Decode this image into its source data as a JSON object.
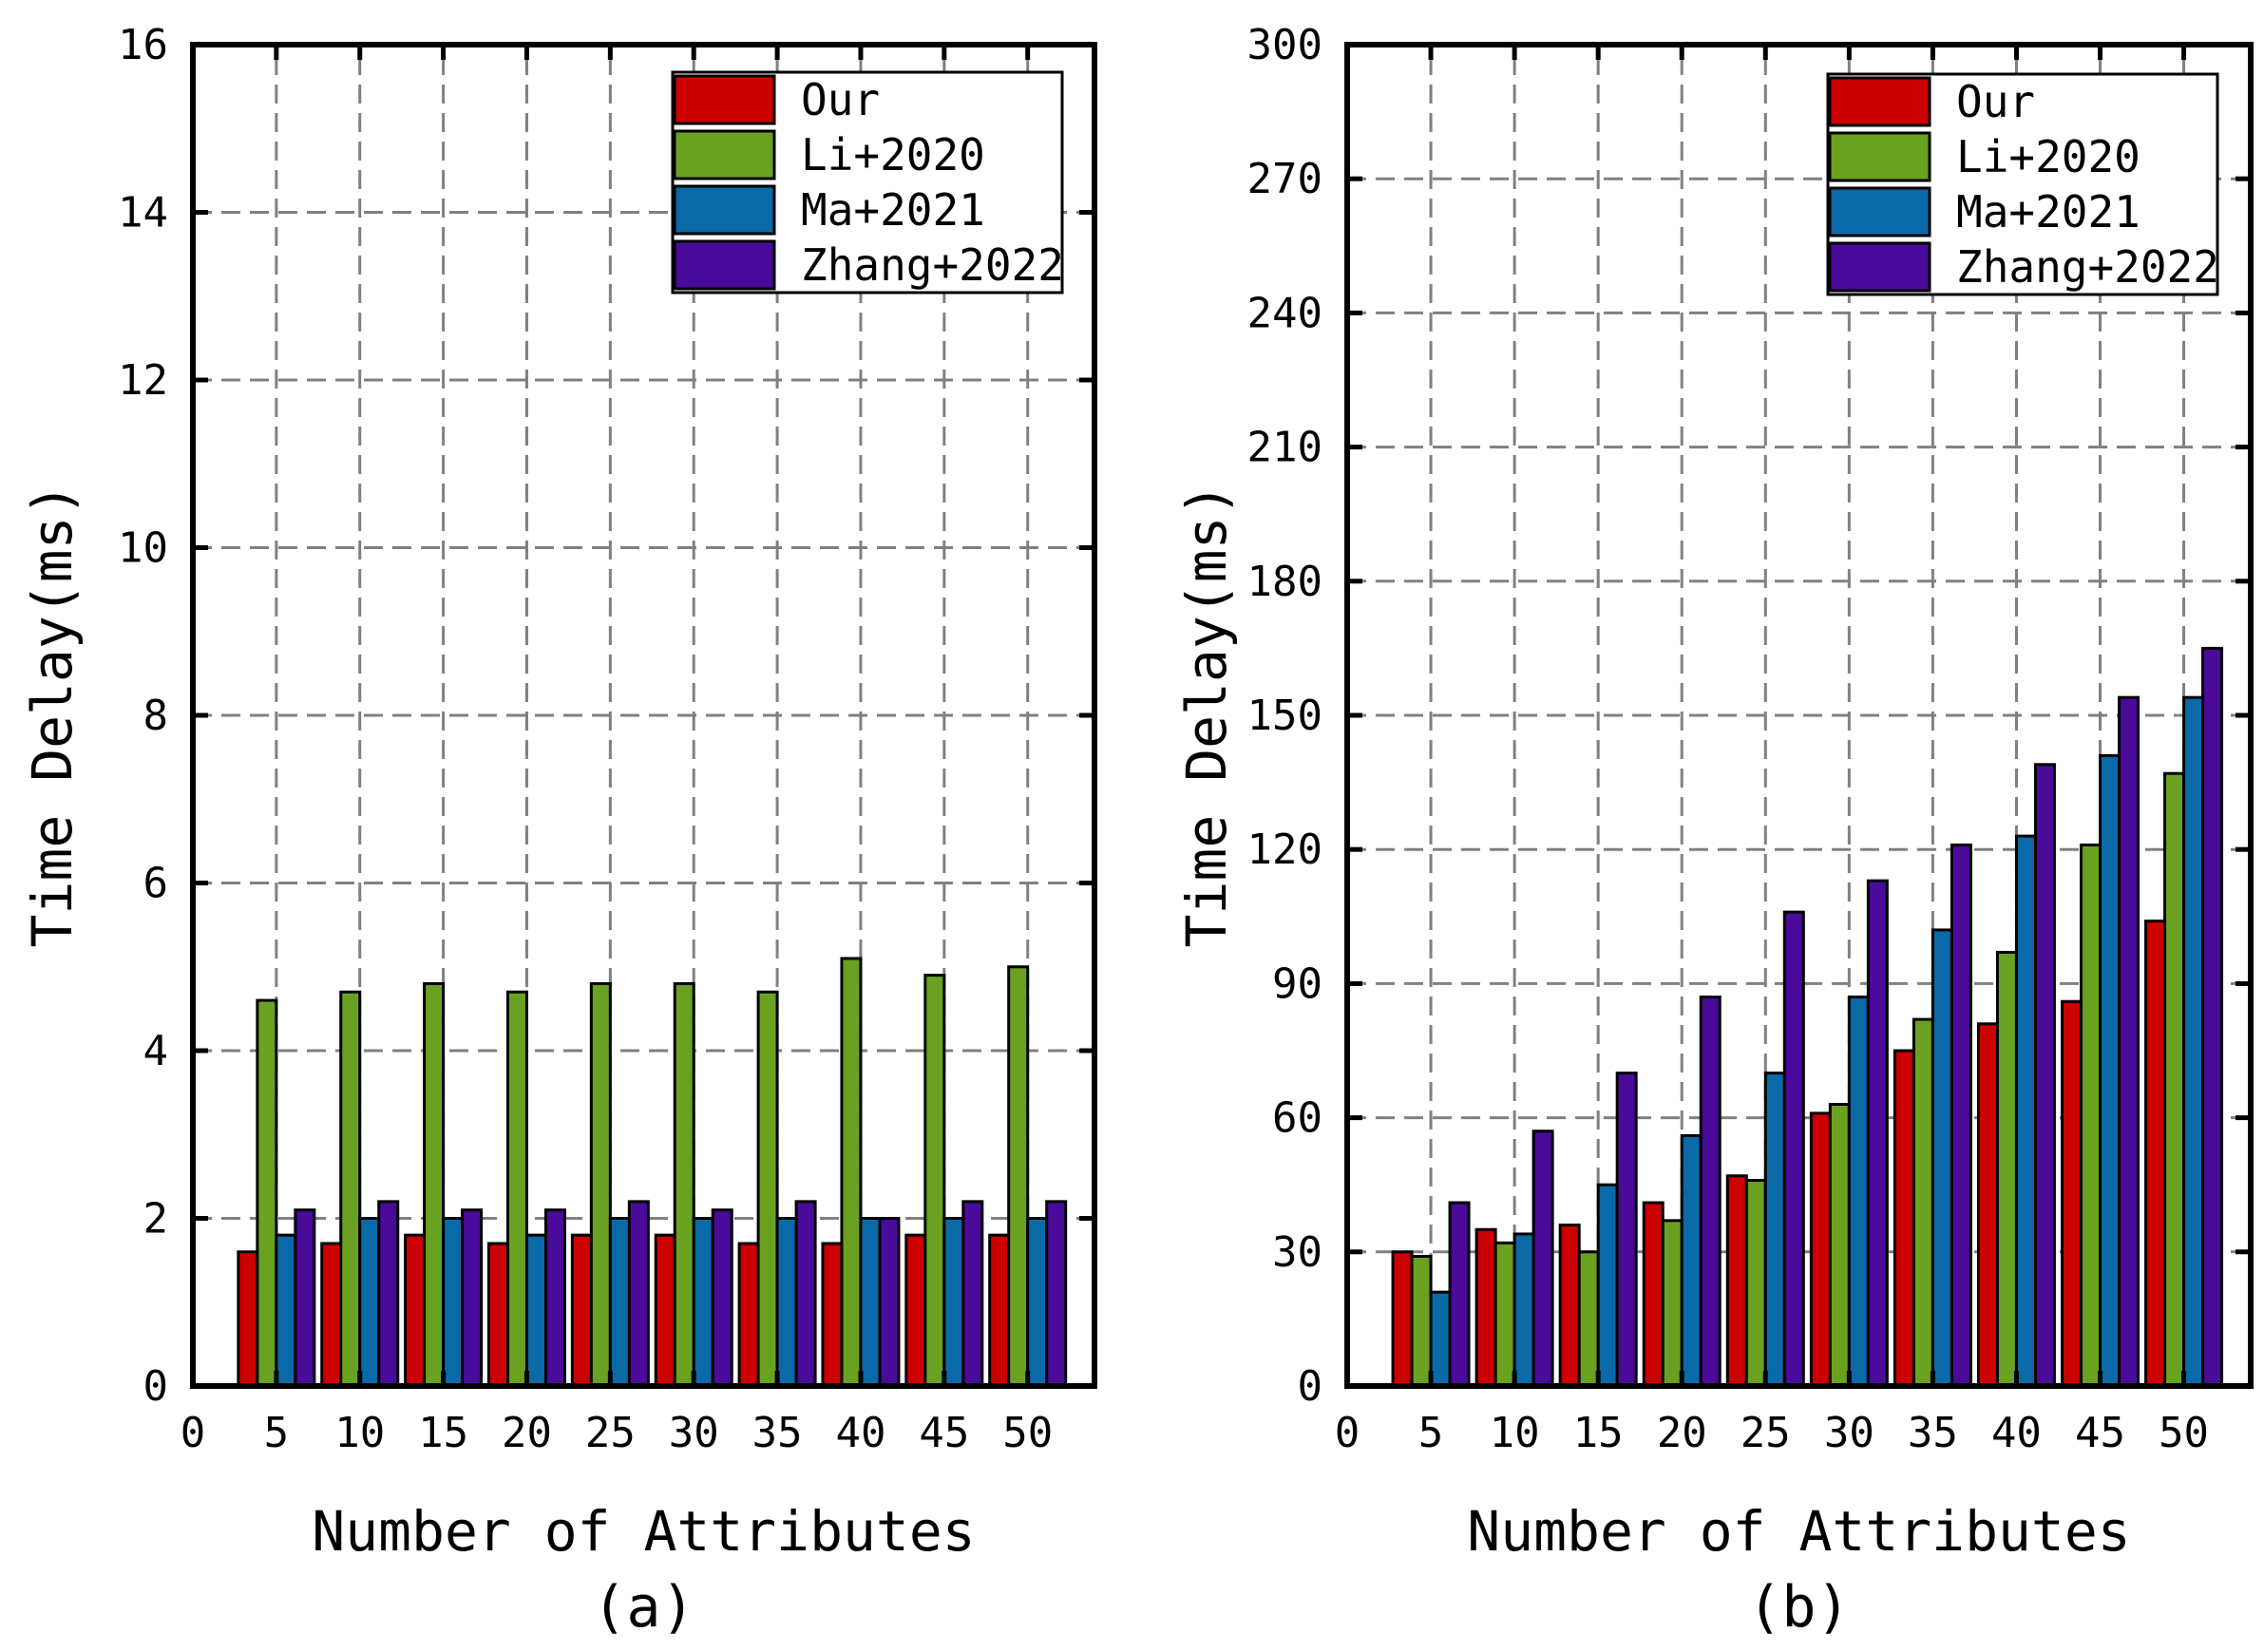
{
  "colors": {
    "Our": "#cc0000",
    "Li+2020": "#6aa121",
    "Ma+2021": "#0a6aa8",
    "Zhang+2022": "#4a0a9a",
    "grid": "#808080",
    "axis": "#000000"
  },
  "chart_data": [
    {
      "type": "bar",
      "panel_label": "(a)",
      "xlabel": "Number of Attributes",
      "ylabel": "Time Delay(ms)",
      "xlim": [
        0,
        54
      ],
      "ylim": [
        0,
        16
      ],
      "xticks": [
        0,
        5,
        10,
        15,
        20,
        25,
        30,
        35,
        40,
        45,
        50
      ],
      "yticks": [
        0,
        2,
        4,
        6,
        8,
        10,
        12,
        14,
        16
      ],
      "grid": true,
      "legend_position": "top-right",
      "categories": [
        5,
        10,
        15,
        20,
        25,
        30,
        35,
        40,
        45,
        50
      ],
      "series": [
        {
          "name": "Our",
          "values": [
            1.6,
            1.7,
            1.8,
            1.7,
            1.8,
            1.8,
            1.7,
            1.7,
            1.8,
            1.8
          ]
        },
        {
          "name": "Li+2020",
          "values": [
            4.6,
            4.7,
            4.8,
            4.7,
            4.8,
            4.8,
            4.7,
            5.1,
            4.9,
            5.0
          ]
        },
        {
          "name": "Ma+2021",
          "values": [
            1.8,
            2.0,
            2.0,
            1.8,
            2.0,
            2.0,
            2.0,
            2.0,
            2.0,
            2.0
          ]
        },
        {
          "name": "Zhang+2022",
          "values": [
            2.1,
            2.2,
            2.1,
            2.1,
            2.2,
            2.1,
            2.2,
            2.0,
            2.2,
            2.2
          ]
        }
      ]
    },
    {
      "type": "bar",
      "panel_label": "(b)",
      "xlabel": "Number of Attributes",
      "ylabel": "Time Delay(ms)",
      "xlim": [
        0,
        54
      ],
      "ylim": [
        0,
        300
      ],
      "xticks": [
        0,
        5,
        10,
        15,
        20,
        25,
        30,
        35,
        40,
        45,
        50
      ],
      "yticks": [
        0,
        30,
        60,
        90,
        120,
        150,
        180,
        210,
        240,
        270,
        300
      ],
      "grid": true,
      "legend_position": "top-right",
      "categories": [
        5,
        10,
        15,
        20,
        25,
        30,
        35,
        40,
        45,
        50
      ],
      "series": [
        {
          "name": "Our",
          "values": [
            30,
            35,
            36,
            41,
            47,
            61,
            75,
            81,
            86,
            104
          ]
        },
        {
          "name": "Li+2020",
          "values": [
            29,
            32,
            30,
            37,
            46,
            63,
            82,
            97,
            121,
            137
          ]
        },
        {
          "name": "Ma+2021",
          "values": [
            21,
            34,
            45,
            56,
            70,
            87,
            102,
            123,
            141,
            154
          ]
        },
        {
          "name": "Zhang+2022",
          "values": [
            41,
            57,
            70,
            87,
            106,
            113,
            121,
            139,
            154,
            165
          ]
        }
      ]
    }
  ]
}
